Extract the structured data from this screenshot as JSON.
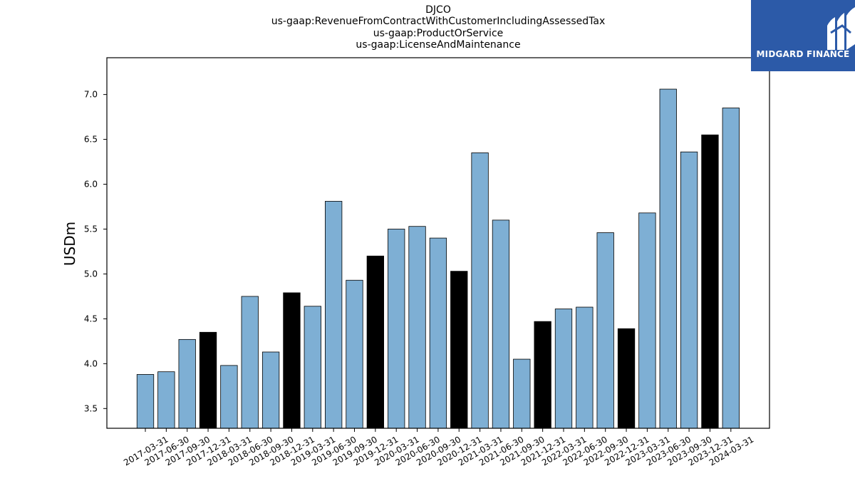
{
  "chart_data": {
    "type": "bar",
    "title_lines": [
      "DJCO",
      "us-gaap:RevenueFromContractWithCustomerIncludingAssessedTax",
      "us-gaap:ProductOrService",
      "us-gaap:LicenseAndMaintenance"
    ],
    "ylabel": "USDm",
    "xlabel": "",
    "ylim": [
      3.28,
      7.41
    ],
    "yticks": [
      3.5,
      4.0,
      4.5,
      5.0,
      5.5,
      6.0,
      6.5,
      7.0
    ],
    "categories": [
      "2017-03-31",
      "2017-06-30",
      "2017-09-30",
      "2017-12-31",
      "2018-03-31",
      "2018-06-30",
      "2018-09-30",
      "2018-12-31",
      "2019-03-31",
      "2019-06-30",
      "2019-09-30",
      "2019-12-31",
      "2020-03-31",
      "2020-06-30",
      "2020-09-30",
      "2020-12-31",
      "2021-03-31",
      "2021-06-30",
      "2021-09-30",
      "2021-12-31",
      "2022-03-31",
      "2022-06-30",
      "2022-09-30",
      "2022-12-31",
      "2023-03-31",
      "2023-06-30",
      "2023-09-30",
      "2023-12-31",
      "2024-03-31"
    ],
    "values": [
      3.88,
      3.91,
      4.27,
      4.35,
      3.98,
      4.75,
      4.13,
      4.79,
      4.64,
      5.81,
      4.93,
      5.2,
      5.5,
      5.53,
      5.4,
      5.03,
      6.35,
      5.6,
      4.05,
      4.47,
      4.61,
      4.63,
      5.46,
      4.39,
      5.68,
      7.06,
      6.36,
      6.55,
      6.85
    ],
    "highlight": [
      false,
      false,
      false,
      true,
      false,
      false,
      false,
      true,
      false,
      false,
      false,
      true,
      false,
      false,
      false,
      true,
      false,
      false,
      false,
      true,
      false,
      false,
      false,
      true,
      false,
      false,
      false,
      true,
      false
    ],
    "colors": {
      "bar": "#7eafd4",
      "bar_highlight": "#000000",
      "edge": "#000000"
    },
    "grid": false,
    "legend": "none"
  },
  "logo": {
    "text": "MIDGARD FINANCE",
    "background": "#2c5aa8"
  }
}
